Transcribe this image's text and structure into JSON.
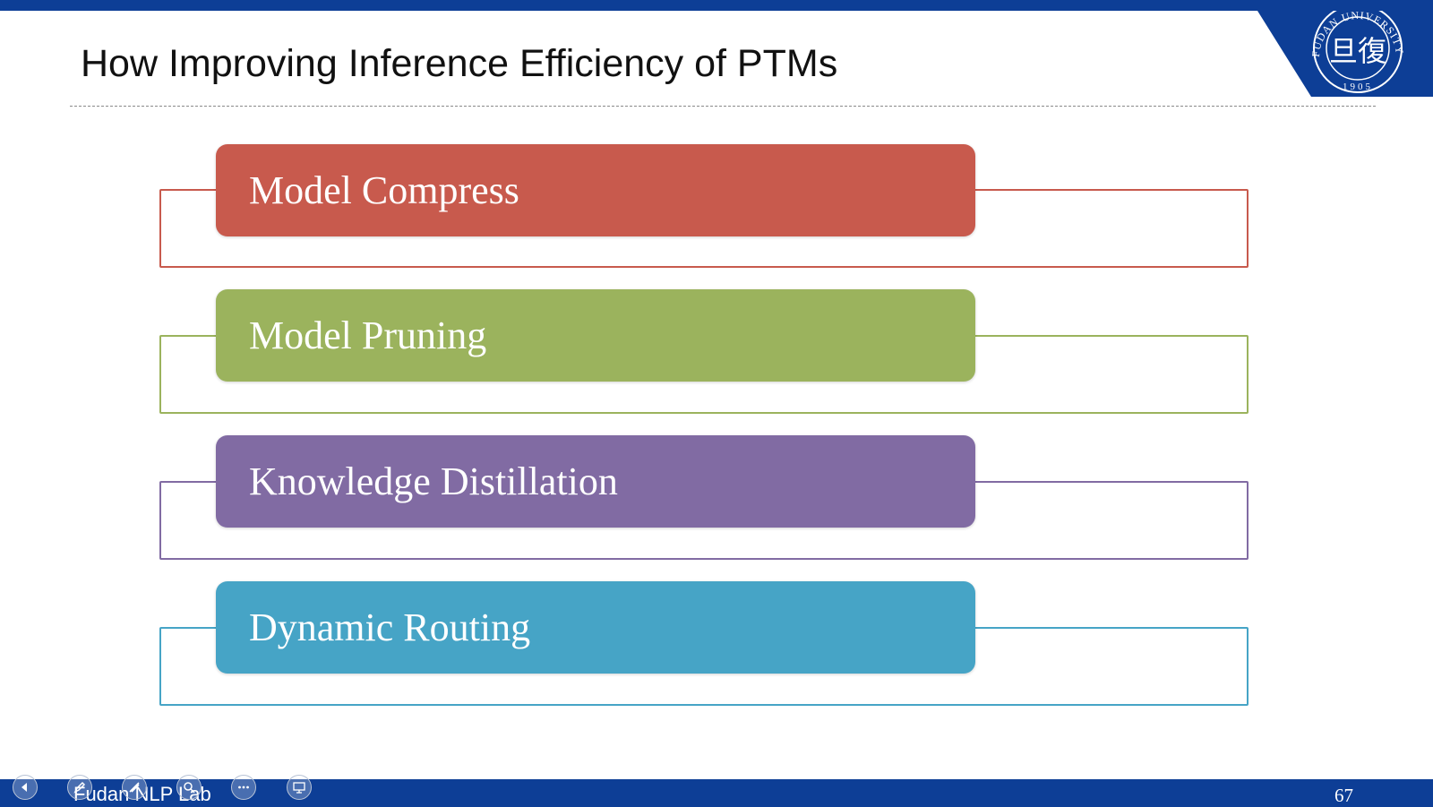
{
  "slide": {
    "title": "How Improving Inference Efficiency of PTMs",
    "items": [
      {
        "label": "Model Compress",
        "color": "#c85a4d"
      },
      {
        "label": "Model Pruning",
        "color": "#9bb35d"
      },
      {
        "label": "Knowledge Distillation",
        "color": "#816ba3"
      },
      {
        "label": "Dynamic Routing",
        "color": "#46a4c6"
      }
    ],
    "footer": "Fudan NLP Lab",
    "page_number": "67"
  },
  "logo": {
    "arc_text": "FUDAN UNIVERSITY",
    "glyph": "旦復",
    "year": "1905"
  },
  "controls": [
    "previous-icon",
    "pen-icon",
    "highlighter-icon",
    "magnify-icon",
    "more-icon",
    "presenter-view-icon"
  ],
  "theme": {
    "bar_color": "#0d3e96"
  }
}
